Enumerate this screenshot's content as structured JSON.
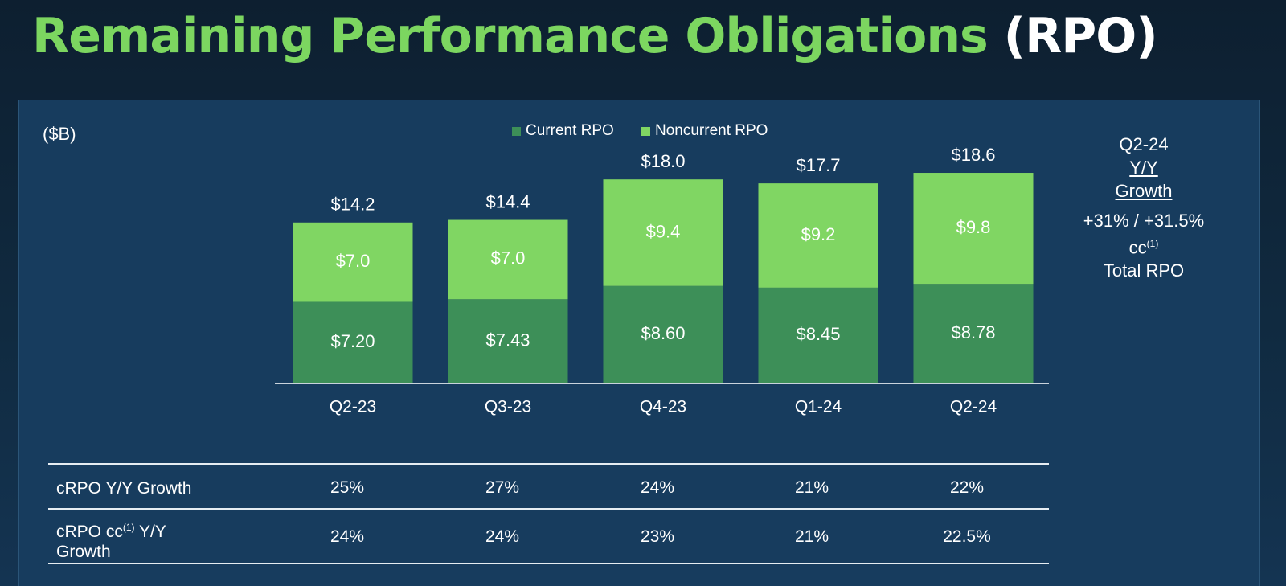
{
  "title": {
    "main": "Remaining Performance Obligations",
    "suffix": "(RPO)"
  },
  "unit_label": "($B)",
  "colors": {
    "current": "#3d8f58",
    "noncurrent": "#80d663",
    "title_green": "#7cd660"
  },
  "chart_data": {
    "type": "bar",
    "stacked": true,
    "categories": [
      "Q2-23",
      "Q3-23",
      "Q4-23",
      "Q1-24",
      "Q2-24"
    ],
    "series": [
      {
        "name": "Current RPO",
        "values": [
          7.2,
          7.43,
          8.6,
          8.45,
          8.78
        ],
        "labels": [
          "$7.20",
          "$7.43",
          "$8.60",
          "$8.45",
          "$8.78"
        ]
      },
      {
        "name": "Noncurrent RPO",
        "values": [
          7.0,
          7.0,
          9.4,
          9.2,
          9.8
        ],
        "labels": [
          "$7.0",
          "$7.0",
          "$9.4",
          "$9.2",
          "$9.8"
        ]
      }
    ],
    "totals": [
      14.2,
      14.4,
      18.0,
      17.7,
      18.6
    ],
    "total_labels": [
      "$14.2",
      "$14.4",
      "$18.0",
      "$17.7",
      "$18.6"
    ],
    "legend_position": "top-center"
  },
  "side_note": {
    "period": "Q2-24",
    "line1": "Y/Y",
    "line2": "Growth",
    "value": "+31% / +31.5%",
    "cc_text": "cc",
    "cc_sup": "(1)",
    "label": "Total RPO"
  },
  "table": {
    "rows": [
      {
        "label": "cRPO Y/Y Growth",
        "values": [
          "25%",
          "27%",
          "24%",
          "21%",
          "22%"
        ]
      },
      {
        "label_part1": "cRPO cc",
        "label_sup": "(1)",
        "label_part2": " Y/Y",
        "label_line2": "Growth",
        "values": [
          "24%",
          "24%",
          "23%",
          "21%",
          "22.5%"
        ]
      }
    ]
  }
}
